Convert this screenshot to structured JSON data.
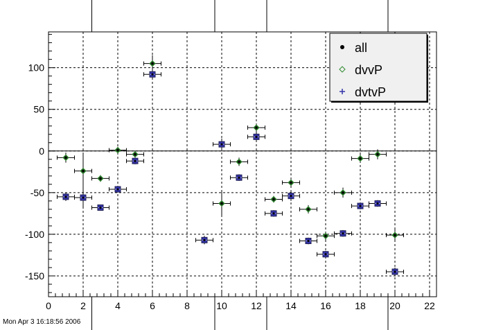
{
  "timestamp": "Mon Apr  3 16:18:56 2006",
  "chart_data": {
    "type": "scatter",
    "title": "",
    "xlabel": "",
    "ylabel": "",
    "xlim": [
      0,
      22.4
    ],
    "ylim": [
      -175,
      143
    ],
    "xticks": [
      0,
      2,
      4,
      6,
      8,
      10,
      12,
      14,
      16,
      18,
      20,
      22
    ],
    "yticks": [
      -150,
      -100,
      -50,
      0,
      50,
      100
    ],
    "grid": true,
    "zero_line": true,
    "canvas_dividers_x": [
      2.5,
      9.6,
      12.6,
      19.6
    ],
    "legend": {
      "position": "top-right",
      "entries": [
        {
          "label": "all",
          "marker": "dot",
          "color": "#000000"
        },
        {
          "label": "dvvP",
          "marker": "diamond",
          "color": "#2e8b2e"
        },
        {
          "label": "dvtvP",
          "marker": "cross",
          "color": "#3333aa"
        }
      ]
    },
    "series": [
      {
        "name": "all",
        "color": "#000000",
        "points": [
          {
            "x": 1,
            "y": -8,
            "err": 6
          },
          {
            "x": 1,
            "y": -55,
            "err": 5
          },
          {
            "x": 2,
            "y": -24,
            "err": 20
          },
          {
            "x": 2,
            "y": -56,
            "err": 12
          },
          {
            "x": 3,
            "y": -33,
            "err": 4
          },
          {
            "x": 3,
            "y": -68,
            "err": 3
          },
          {
            "x": 4,
            "y": 1,
            "err": 4
          },
          {
            "x": 4,
            "y": -46,
            "err": 4
          },
          {
            "x": 5,
            "y": -4,
            "err": 4
          },
          {
            "x": 5,
            "y": -12,
            "err": 4
          },
          {
            "x": 6,
            "y": 105,
            "err": 10
          },
          {
            "x": 6,
            "y": 92,
            "err": 6
          },
          {
            "x": 9,
            "y": -107,
            "err": 5
          },
          {
            "x": 10,
            "y": 8,
            "err": 7
          },
          {
            "x": 10,
            "y": -63,
            "err": 14
          },
          {
            "x": 11,
            "y": -13,
            "err": 5
          },
          {
            "x": 11,
            "y": -32,
            "err": 4
          },
          {
            "x": 12,
            "y": 28,
            "err": 5
          },
          {
            "x": 12,
            "y": 17,
            "err": 5
          },
          {
            "x": 13,
            "y": -58,
            "err": 4
          },
          {
            "x": 13,
            "y": -75,
            "err": 4
          },
          {
            "x": 14,
            "y": -38,
            "err": 5
          },
          {
            "x": 14,
            "y": -54,
            "err": 6
          },
          {
            "x": 15,
            "y": -70,
            "err": 5
          },
          {
            "x": 15,
            "y": -108,
            "err": 4
          },
          {
            "x": 16,
            "y": -102,
            "err": 5
          },
          {
            "x": 16,
            "y": -124,
            "err": 4
          },
          {
            "x": 17,
            "y": -50,
            "err": 6
          },
          {
            "x": 17,
            "y": -99,
            "err": 4
          },
          {
            "x": 18,
            "y": -9,
            "err": 5
          },
          {
            "x": 18,
            "y": -66,
            "err": 4
          },
          {
            "x": 19,
            "y": -4,
            "err": 6
          },
          {
            "x": 19,
            "y": -63,
            "err": 4
          },
          {
            "x": 20,
            "y": -101,
            "err": 7
          },
          {
            "x": 20,
            "y": -145,
            "err": 5
          }
        ]
      },
      {
        "name": "dvvP",
        "color": "#2e8b2e",
        "points": [
          {
            "x": 1,
            "y": -8
          },
          {
            "x": 2,
            "y": -24
          },
          {
            "x": 3,
            "y": -33
          },
          {
            "x": 4,
            "y": 1
          },
          {
            "x": 5,
            "y": -4
          },
          {
            "x": 6,
            "y": 105
          },
          {
            "x": 10,
            "y": -63
          },
          {
            "x": 11,
            "y": -13
          },
          {
            "x": 12,
            "y": 28
          },
          {
            "x": 13,
            "y": -58
          },
          {
            "x": 14,
            "y": -38
          },
          {
            "x": 15,
            "y": -70
          },
          {
            "x": 16,
            "y": -102
          },
          {
            "x": 17,
            "y": -50
          },
          {
            "x": 18,
            "y": -9
          },
          {
            "x": 19,
            "y": -4
          },
          {
            "x": 20,
            "y": -101
          }
        ]
      },
      {
        "name": "dvtvP",
        "color": "#3333aa",
        "points": [
          {
            "x": 1,
            "y": -55
          },
          {
            "x": 2,
            "y": -56
          },
          {
            "x": 3,
            "y": -68
          },
          {
            "x": 4,
            "y": -46
          },
          {
            "x": 5,
            "y": -12
          },
          {
            "x": 6,
            "y": 92
          },
          {
            "x": 9,
            "y": -107
          },
          {
            "x": 10,
            "y": 8
          },
          {
            "x": 11,
            "y": -32
          },
          {
            "x": 12,
            "y": 17
          },
          {
            "x": 13,
            "y": -75
          },
          {
            "x": 14,
            "y": -54
          },
          {
            "x": 15,
            "y": -108
          },
          {
            "x": 16,
            "y": -124
          },
          {
            "x": 17,
            "y": -99
          },
          {
            "x": 18,
            "y": -66
          },
          {
            "x": 19,
            "y": -63
          },
          {
            "x": 20,
            "y": -145
          }
        ]
      }
    ]
  }
}
